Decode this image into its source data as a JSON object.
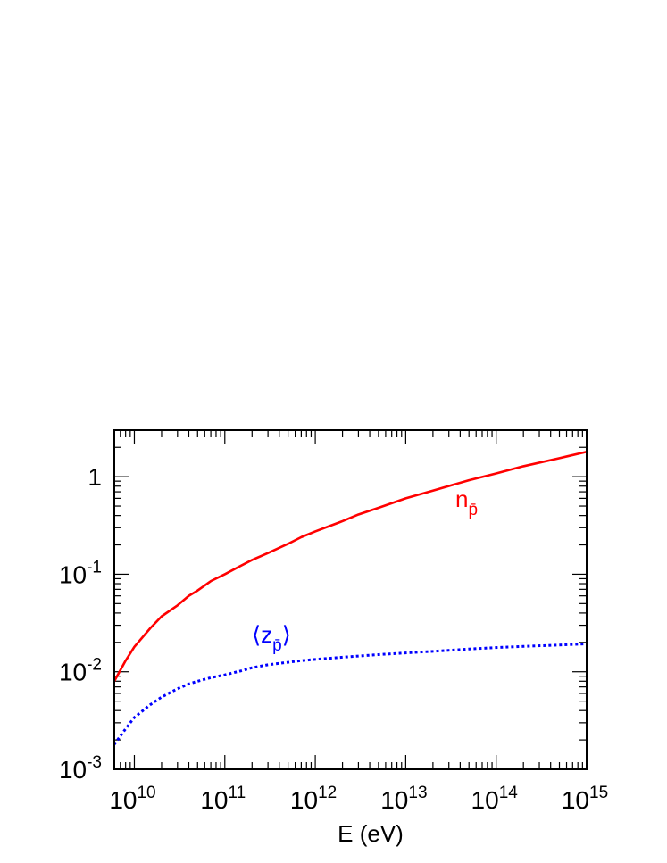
{
  "chart_data": {
    "type": "line",
    "title": "",
    "xlabel": "E (eV)",
    "ylabel": "",
    "xscale": "log",
    "yscale": "log",
    "xlim": [
      6000000000.0,
      1000000000000000.0
    ],
    "ylim": [
      0.001,
      3
    ],
    "grid": false,
    "legend": "none",
    "x_ticks": [
      {
        "base": "10",
        "exp": "10",
        "value": 10000000000.0
      },
      {
        "base": "10",
        "exp": "11",
        "value": 100000000000.0
      },
      {
        "base": "10",
        "exp": "12",
        "value": 1000000000000.0
      },
      {
        "base": "10",
        "exp": "13",
        "value": 10000000000000.0
      },
      {
        "base": "10",
        "exp": "14",
        "value": 100000000000000.0
      },
      {
        "base": "10",
        "exp": "15",
        "value": 1000000000000000.0
      }
    ],
    "y_ticks": [
      {
        "base": "1",
        "exp": "",
        "value": 1
      },
      {
        "base": "10",
        "exp": "-1",
        "value": 0.1
      },
      {
        "base": "10",
        "exp": "-2",
        "value": 0.01
      },
      {
        "base": "10",
        "exp": "-3",
        "value": 0.001
      }
    ],
    "series": [
      {
        "name": "n",
        "name_subscript": "p̄",
        "color": "#ff0000",
        "dash": "solid",
        "label_position": "right-upper",
        "x": [
          6000000000.0,
          8000000000.0,
          10000000000.0,
          15000000000.0,
          20000000000.0,
          30000000000.0,
          40000000000.0,
          50000000000.0,
          70000000000.0,
          100000000000.0,
          150000000000.0,
          200000000000.0,
          300000000000.0,
          500000000000.0,
          700000000000.0,
          1000000000000.0,
          2000000000000.0,
          3000000000000.0,
          5000000000000.0,
          10000000000000.0,
          20000000000000.0,
          50000000000000.0,
          100000000000000.0,
          200000000000000.0,
          500000000000000.0,
          1000000000000000.0
        ],
        "y": [
          0.008,
          0.013,
          0.018,
          0.028,
          0.037,
          0.048,
          0.06,
          0.068,
          0.085,
          0.1,
          0.122,
          0.14,
          0.165,
          0.205,
          0.24,
          0.275,
          0.35,
          0.41,
          0.48,
          0.6,
          0.72,
          0.92,
          1.08,
          1.28,
          1.55,
          1.8
        ]
      },
      {
        "name": "⟨z",
        "name_subscript": "p̄",
        "name_suffix": "⟩",
        "color": "#0000ff",
        "dash": "dotted",
        "label_position": "middle",
        "x": [
          6000000000.0,
          8000000000.0,
          10000000000.0,
          15000000000.0,
          20000000000.0,
          30000000000.0,
          40000000000.0,
          50000000000.0,
          70000000000.0,
          100000000000.0,
          150000000000.0,
          200000000000.0,
          300000000000.0,
          500000000000.0,
          700000000000.0,
          1000000000000.0,
          2000000000000.0,
          3000000000000.0,
          5000000000000.0,
          10000000000000.0,
          20000000000000.0,
          50000000000000.0,
          100000000000000.0,
          200000000000000.0,
          500000000000000.0,
          1000000000000000.0
        ],
        "y": [
          0.0018,
          0.0026,
          0.0034,
          0.0046,
          0.0055,
          0.0067,
          0.0075,
          0.008,
          0.0087,
          0.0093,
          0.0102,
          0.011,
          0.0118,
          0.0125,
          0.013,
          0.0134,
          0.0141,
          0.0145,
          0.015,
          0.0156,
          0.0162,
          0.0171,
          0.0177,
          0.0182,
          0.0188,
          0.0193
        ]
      }
    ]
  }
}
